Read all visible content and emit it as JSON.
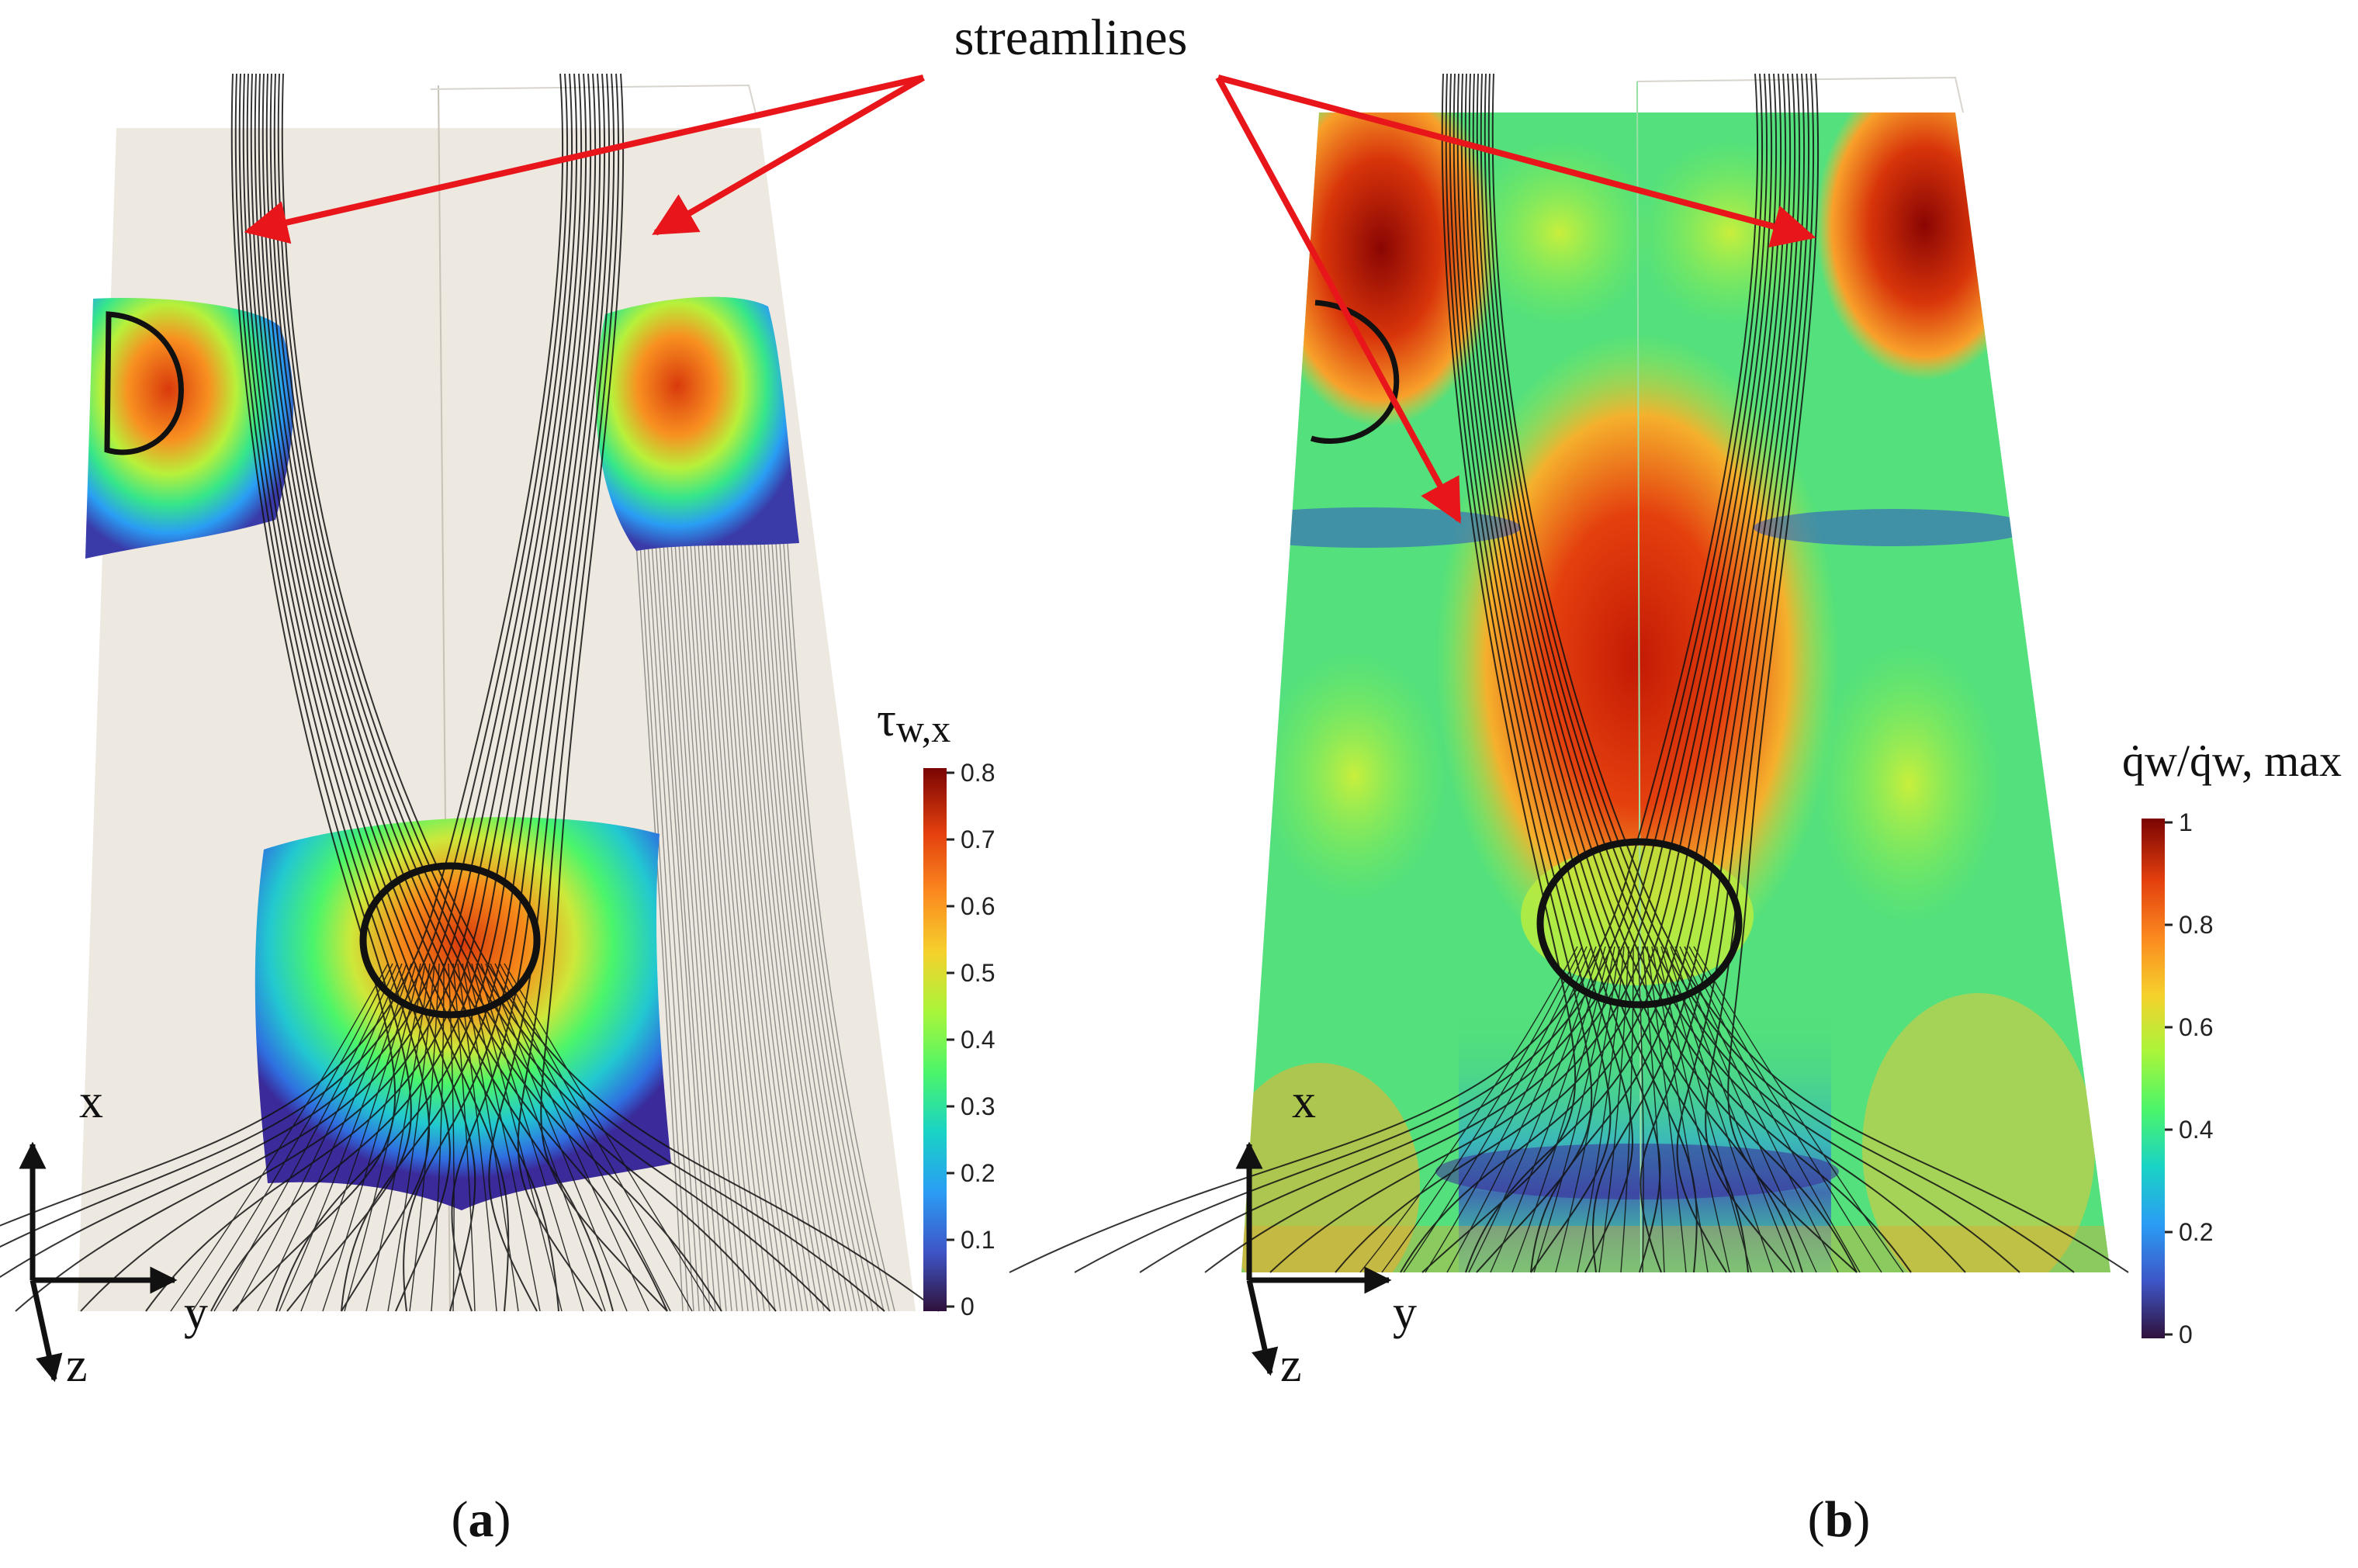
{
  "annotation": {
    "label": "streamlines"
  },
  "panels": [
    {
      "id": "a",
      "caption_letter": "a",
      "colorbar": {
        "label_main": "τ",
        "label_sub": "w,x",
        "ticks": [
          "0.8",
          "0.7",
          "0.6",
          "0.5",
          "0.4",
          "0.3",
          "0.2",
          "0.1",
          "0"
        ]
      },
      "axes": {
        "x": "x",
        "y": "y",
        "z": "z"
      }
    },
    {
      "id": "b",
      "caption_letter": "b",
      "colorbar": {
        "label": "q̇w/q̇w, max",
        "ticks": [
          "1",
          "0.8",
          "0.6",
          "0.4",
          "0.2",
          "0"
        ]
      },
      "axes": {
        "x": "x",
        "y": "y",
        "z": "z"
      }
    }
  ],
  "colors": {
    "arrow": "#e8161b",
    "colormap": [
      "#30123b",
      "#3e56c8",
      "#2a9df4",
      "#19d3c5",
      "#4bf56a",
      "#a8f53a",
      "#f5d12c",
      "#fb8a1f",
      "#e4400e",
      "#7a0403"
    ],
    "background_a": "#ede8e0",
    "streamline": "#111111"
  }
}
